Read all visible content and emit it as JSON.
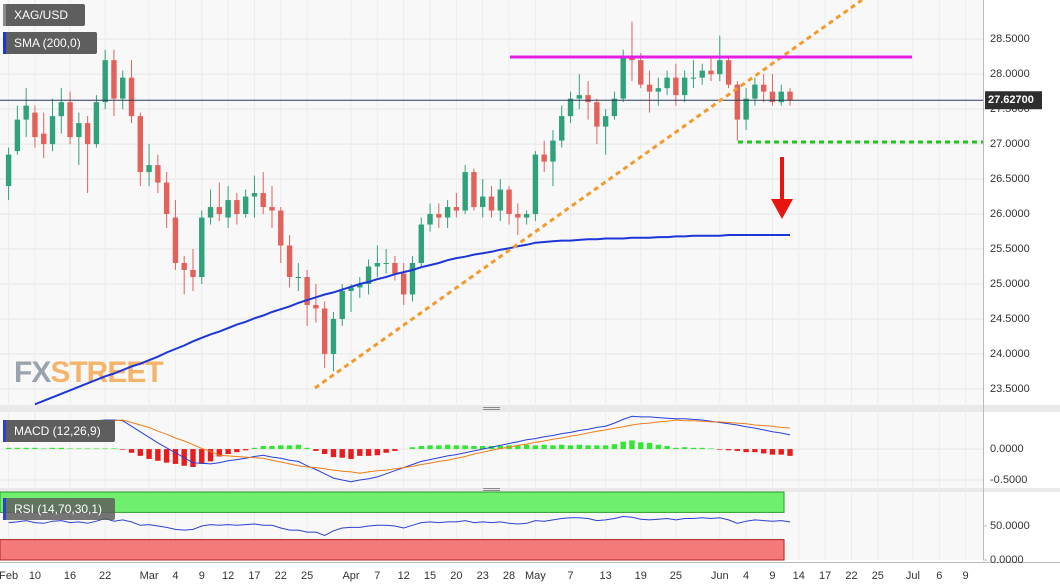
{
  "watermark": [
    "FX",
    "STREET"
  ],
  "chart_data": [
    {
      "type": "candlestick",
      "title": "XAG/USD",
      "grid": true,
      "up_color": "#2fa27a",
      "down_color": "#e2625b",
      "categories": [
        "Feb",
        null,
        null,
        "10",
        null,
        null,
        null,
        "16",
        null,
        null,
        null,
        "22",
        null,
        null,
        null,
        null,
        "Mar",
        null,
        null,
        "4",
        null,
        null,
        "9",
        null,
        null,
        "12",
        null,
        null,
        "17",
        null,
        null,
        "22",
        null,
        null,
        "25",
        null,
        null,
        null,
        null,
        "Apr",
        null,
        null,
        "7",
        null,
        null,
        "12",
        null,
        null,
        "15",
        null,
        null,
        "20",
        null,
        null,
        "23",
        null,
        null,
        "28",
        null,
        null,
        "May",
        null,
        null,
        null,
        "7",
        null,
        null,
        null,
        "13",
        null,
        null,
        null,
        "19",
        null,
        null,
        null,
        "25",
        null,
        null,
        null,
        null,
        "Jun",
        null,
        null,
        "4",
        null,
        null,
        "9",
        null,
        null,
        "14",
        null,
        null,
        "17",
        null,
        null,
        "22",
        null,
        null,
        "25",
        null,
        null,
        null,
        "Jul",
        null,
        null,
        "6",
        null,
        null,
        "9",
        null
      ],
      "open": [
        26.4,
        26.9,
        27.35,
        27.45,
        27.15,
        27.0,
        27.4,
        27.6,
        27.1,
        27.3,
        27.0,
        27.6,
        28.2,
        27.65,
        27.95,
        27.4,
        26.6,
        26.7,
        26.45,
        25.95,
        25.3,
        25.2,
        25.1,
        25.95,
        26.1,
        25.95,
        26.2,
        26.0,
        26.25,
        26.3,
        26.1,
        26.05,
        25.55,
        25.1,
        25.1,
        24.7,
        24.65,
        24.0,
        24.5,
        24.9,
        24.95,
        25.0,
        25.25,
        25.3,
        25.3,
        25.15,
        24.85,
        25.3,
        25.85,
        26.0,
        25.95,
        26.1,
        26.05,
        26.6,
        26.1,
        26.25,
        26.05,
        26.35,
        26.0,
        25.95,
        26.0,
        26.85,
        26.75,
        27.05,
        27.4,
        27.65,
        27.7,
        27.6,
        27.25,
        27.4,
        27.65,
        28.25,
        28.2,
        27.85,
        27.75,
        27.8,
        27.95,
        27.7,
        27.95,
        27.95,
        28.05,
        28.0,
        28.2,
        27.85,
        27.35,
        27.65,
        27.85,
        27.75,
        27.6,
        27.75,
        null,
        null,
        null,
        null,
        null,
        null,
        null,
        null,
        null,
        null,
        null,
        null,
        null,
        null,
        null,
        null,
        null,
        null,
        null,
        null,
        null
      ],
      "high": [
        26.95,
        27.55,
        27.8,
        27.55,
        27.45,
        27.65,
        27.8,
        27.75,
        27.45,
        27.4,
        27.7,
        28.35,
        28.35,
        28.05,
        28.2,
        27.45,
        27.0,
        26.85,
        26.6,
        26.2,
        25.4,
        25.5,
        26.05,
        26.35,
        26.45,
        26.4,
        26.3,
        26.35,
        26.55,
        26.6,
        26.4,
        26.1,
        25.7,
        25.3,
        25.2,
        25.0,
        24.75,
        24.6,
        25.0,
        25.0,
        25.1,
        25.35,
        25.55,
        25.5,
        25.4,
        25.3,
        25.4,
        25.95,
        26.15,
        26.15,
        26.2,
        26.3,
        26.7,
        26.65,
        26.5,
        26.4,
        26.5,
        26.4,
        26.15,
        26.05,
        26.9,
        27.05,
        27.2,
        27.55,
        27.75,
        28.0,
        27.9,
        27.65,
        27.5,
        27.75,
        28.35,
        28.75,
        28.3,
        28.05,
        27.95,
        28.05,
        28.15,
        28.05,
        28.2,
        28.15,
        28.25,
        28.55,
        28.25,
        27.9,
        27.8,
        27.95,
        28.0,
        28.0,
        27.85,
        27.8,
        null,
        null,
        null,
        null,
        null,
        null,
        null,
        null,
        null,
        null,
        null,
        null,
        null,
        null,
        null,
        null,
        null,
        null,
        null,
        null,
        null
      ],
      "low": [
        26.2,
        26.85,
        27.1,
        26.95,
        26.8,
        26.9,
        27.15,
        27.0,
        26.7,
        26.3,
        26.95,
        27.5,
        27.4,
        27.5,
        27.3,
        26.4,
        26.4,
        26.3,
        25.8,
        25.2,
        24.85,
        24.9,
        25.0,
        25.85,
        25.9,
        25.8,
        25.85,
        25.95,
        25.95,
        26.0,
        25.8,
        25.3,
        24.95,
        24.9,
        24.4,
        24.45,
        23.8,
        23.75,
        24.4,
        24.6,
        24.8,
        24.85,
        25.1,
        25.15,
        25.05,
        24.7,
        24.75,
        25.25,
        25.75,
        25.8,
        25.8,
        25.95,
        26.0,
        26.05,
        25.95,
        25.95,
        25.9,
        25.85,
        25.7,
        25.85,
        25.9,
        26.6,
        26.4,
        26.95,
        27.3,
        27.5,
        27.35,
        27.0,
        26.85,
        27.35,
        27.6,
        27.9,
        27.8,
        27.45,
        27.55,
        27.7,
        27.55,
        27.6,
        27.8,
        27.85,
        27.9,
        27.9,
        27.8,
        27.05,
        27.2,
        27.55,
        27.6,
        27.55,
        27.55,
        27.55,
        null,
        null,
        null,
        null,
        null,
        null,
        null,
        null,
        null,
        null,
        null,
        null,
        null,
        null,
        null,
        null,
        null,
        null,
        null,
        null,
        null
      ],
      "close": [
        26.85,
        27.35,
        27.55,
        27.1,
        27.0,
        27.4,
        27.6,
        27.1,
        27.3,
        27.0,
        27.6,
        28.2,
        27.65,
        27.95,
        27.4,
        26.6,
        26.7,
        26.45,
        26.0,
        25.3,
        25.2,
        25.1,
        25.95,
        26.1,
        26.0,
        26.2,
        26.0,
        26.25,
        26.3,
        26.1,
        26.05,
        25.55,
        25.1,
        25.1,
        24.7,
        24.65,
        24.0,
        24.5,
        24.9,
        24.95,
        25.0,
        25.25,
        25.3,
        25.3,
        25.15,
        24.85,
        25.3,
        25.85,
        26.0,
        25.95,
        26.1,
        26.05,
        26.6,
        26.1,
        26.25,
        26.05,
        26.35,
        26.0,
        25.95,
        26.0,
        26.85,
        26.75,
        27.05,
        27.4,
        27.65,
        27.7,
        27.6,
        27.25,
        27.4,
        27.65,
        28.25,
        28.2,
        27.85,
        27.75,
        27.8,
        27.95,
        27.7,
        27.95,
        27.95,
        28.05,
        28.0,
        28.2,
        27.85,
        27.35,
        27.65,
        27.85,
        27.75,
        27.6,
        27.75,
        27.63,
        null,
        null,
        null,
        null,
        null,
        null,
        null,
        null,
        null,
        null,
        null,
        null,
        null,
        null,
        null,
        null,
        null,
        null,
        null,
        null,
        null
      ],
      "series": [
        {
          "name": "SMA (200,0)",
          "color": "#1c36d8",
          "values": [
            null,
            null,
            null,
            23.28,
            23.33,
            23.38,
            23.43,
            23.48,
            23.53,
            23.58,
            23.63,
            23.68,
            23.72,
            23.77,
            23.82,
            23.86,
            23.91,
            23.96,
            24.02,
            24.07,
            24.12,
            24.18,
            24.23,
            24.28,
            24.32,
            24.37,
            24.42,
            24.46,
            24.51,
            24.55,
            24.6,
            24.64,
            24.68,
            24.73,
            24.77,
            24.81,
            24.85,
            24.88,
            24.92,
            24.96,
            25.0,
            25.03,
            25.07,
            25.1,
            25.14,
            25.17,
            25.2,
            25.24,
            25.27,
            25.3,
            25.34,
            25.37,
            25.39,
            25.42,
            25.44,
            25.46,
            25.49,
            25.51,
            25.54,
            25.56,
            25.59,
            25.6,
            25.61,
            25.62,
            25.62,
            25.63,
            25.64,
            25.64,
            25.65,
            25.65,
            25.65,
            25.66,
            25.66,
            25.66,
            25.67,
            25.67,
            25.68,
            25.68,
            25.69,
            25.69,
            25.69,
            25.69,
            25.7,
            25.7,
            25.7,
            25.7,
            25.7,
            25.7,
            25.7,
            25.7,
            null,
            null,
            null,
            null,
            null,
            null,
            null,
            null,
            null,
            null,
            null,
            null,
            null,
            null,
            null,
            null,
            null,
            null,
            null,
            null,
            null
          ]
        }
      ],
      "price_tag": {
        "value": 27.627,
        "label": "27.62700"
      },
      "ylim": [
        23.27,
        29.06
      ],
      "yticks": [
        {
          "value": 23.5,
          "label": "23.5000"
        },
        {
          "value": 24,
          "label": "24.0000"
        },
        {
          "value": 24.5,
          "label": "24.5000"
        },
        {
          "value": 25,
          "label": "25.0000"
        },
        {
          "value": 25.5,
          "label": "25.5000"
        },
        {
          "value": 26,
          "label": "26.0000"
        },
        {
          "value": 26.5,
          "label": "26.5000"
        },
        {
          "value": 27,
          "label": "27.0000"
        },
        {
          "value": 27.5,
          "label": "27.5000"
        },
        {
          "value": 28,
          "label": "28.0000"
        },
        {
          "value": 28.5,
          "label": "28.5000"
        }
      ]
    },
    {
      "type": "macd",
      "title": "MACD (12,26,9)",
      "grid": true,
      "series": [
        {
          "color": "#2a3fd8",
          "values": [
            0.4,
            0.41,
            0.41,
            0.42,
            0.42,
            0.43,
            0.44,
            0.44,
            0.45,
            0.45,
            0.46,
            0.47,
            0.47,
            0.46,
            0.37,
            0.28,
            0.19,
            0.1,
            0.02,
            -0.06,
            -0.14,
            -0.22,
            -0.23,
            -0.24,
            -0.22,
            -0.19,
            -0.17,
            -0.15,
            -0.12,
            -0.1,
            -0.13,
            -0.15,
            -0.18,
            -0.2,
            -0.27,
            -0.33,
            -0.4,
            -0.47,
            -0.5,
            -0.53,
            -0.5,
            -0.48,
            -0.45,
            -0.4,
            -0.35,
            -0.3,
            -0.25,
            -0.2,
            -0.17,
            -0.14,
            -0.11,
            -0.09,
            -0.06,
            -0.03,
            0,
            0.03,
            0.06,
            0.09,
            0.12,
            0.15,
            0.17,
            0.2,
            0.22,
            0.25,
            0.27,
            0.3,
            0.32,
            0.35,
            0.37,
            0.42,
            0.48,
            0.53,
            0.52,
            0.52,
            0.51,
            0.5,
            0.49,
            0.49,
            0.48,
            0.47,
            0.45,
            0.43,
            0.41,
            0.39,
            0.36,
            0.34,
            0.31,
            0.28,
            0.26,
            0.23,
            null,
            null,
            null,
            null,
            null,
            null,
            null,
            null,
            null,
            null,
            null,
            null,
            null,
            null,
            null,
            null,
            null,
            null,
            null,
            null,
            null
          ]
        },
        {
          "color": "#f07d1a",
          "values": [
            0.38,
            0.39,
            0.39,
            0.4,
            0.41,
            0.41,
            0.42,
            0.43,
            0.44,
            0.44,
            0.45,
            0.46,
            0.46,
            0.47,
            0.43,
            0.39,
            0.35,
            0.29,
            0.24,
            0.18,
            0.13,
            0.07,
            0.01,
            -0.04,
            -0.1,
            -0.11,
            -0.12,
            -0.13,
            -0.14,
            -0.15,
            -0.18,
            -0.21,
            -0.24,
            -0.27,
            -0.29,
            -0.3,
            -0.32,
            -0.34,
            -0.36,
            -0.37,
            -0.39,
            -0.37,
            -0.35,
            -0.34,
            -0.32,
            -0.3,
            -0.28,
            -0.25,
            -0.23,
            -0.2,
            -0.18,
            -0.15,
            -0.12,
            -0.08,
            -0.05,
            -0.02,
            0.01,
            0.03,
            0.06,
            0.08,
            0.11,
            0.13,
            0.16,
            0.18,
            0.21,
            0.23,
            0.26,
            0.29,
            0.31,
            0.34,
            0.36,
            0.39,
            0.41,
            0.42,
            0.44,
            0.45,
            0.47,
            0.46,
            0.46,
            0.45,
            0.44,
            0.44,
            0.43,
            0.42,
            0.41,
            0.39,
            0.38,
            0.37,
            0.35,
            0.34,
            null,
            null,
            null,
            null,
            null,
            null,
            null,
            null,
            null,
            null,
            null,
            null,
            null,
            null,
            null,
            null,
            null,
            null,
            null,
            null,
            null
          ]
        }
      ],
      "histogram": {
        "up_color": "#33e633",
        "down_color": "#e81c1c",
        "values": [
          0.02,
          0.02,
          0.02,
          0.02,
          0.01,
          0.02,
          0.02,
          0.01,
          0.01,
          0.01,
          0.01,
          0.01,
          0.01,
          -0.01,
          -0.06,
          -0.11,
          -0.16,
          -0.19,
          -0.22,
          -0.24,
          -0.27,
          -0.29,
          -0.24,
          -0.2,
          -0.12,
          -0.08,
          -0.05,
          -0.02,
          0.02,
          0.05,
          0.05,
          0.06,
          0.06,
          0.07,
          0.02,
          -0.03,
          -0.08,
          -0.13,
          -0.14,
          -0.16,
          -0.11,
          -0.11,
          -0.1,
          -0.06,
          -0.03,
          0,
          0.03,
          0.05,
          0.06,
          0.06,
          0.07,
          0.06,
          0.06,
          0.05,
          0.05,
          0.05,
          0.05,
          0.06,
          0.06,
          0.07,
          0.06,
          0.07,
          0.06,
          0.07,
          0.06,
          0.07,
          0.06,
          0.06,
          0.06,
          0.08,
          0.12,
          0.14,
          0.11,
          0.1,
          0.07,
          0.05,
          0.02,
          0.03,
          0.02,
          0.02,
          0.01,
          -0.01,
          -0.02,
          -0.03,
          -0.05,
          -0.05,
          -0.07,
          -0.09,
          -0.09,
          -0.11,
          null,
          null,
          null,
          null,
          null,
          null,
          null,
          null,
          null,
          null,
          null,
          null,
          null,
          null,
          null,
          null,
          null,
          null,
          null,
          null,
          null
        ]
      },
      "ylim": [
        -0.63,
        0.6
      ],
      "yticks": [
        {
          "value": -0.5,
          "label": "-0.5000"
        },
        {
          "value": 0,
          "label": "0.0000"
        }
      ]
    },
    {
      "type": "rsi",
      "title": "RSI (14,70,30,1)",
      "color": "#2f3fd0",
      "overbought": 70,
      "oversold": 30,
      "overbought_color": "#6ef06e",
      "oversold_color": "#f47a7a",
      "values": [
        55,
        56,
        58,
        55,
        54,
        57,
        58,
        55,
        56,
        54,
        57,
        61,
        57,
        59,
        56,
        51,
        52,
        50,
        48,
        45,
        44,
        45,
        50,
        52,
        51,
        52,
        51,
        52,
        53,
        51,
        51,
        47,
        44,
        44,
        41,
        41,
        36,
        43,
        47,
        48,
        48,
        50,
        51,
        51,
        50,
        47,
        51,
        55,
        56,
        55,
        56,
        56,
        58,
        55,
        56,
        55,
        56,
        54,
        53,
        54,
        58,
        57,
        59,
        61,
        62,
        62,
        61,
        58,
        59,
        61,
        64,
        63,
        60,
        59,
        60,
        61,
        59,
        61,
        61,
        62,
        61,
        62,
        59,
        54,
        57,
        59,
        58,
        57,
        58,
        56,
        null,
        null,
        null,
        null,
        null,
        null,
        null,
        null,
        null,
        null,
        null,
        null,
        null,
        null,
        null,
        null,
        null,
        null,
        null,
        null,
        null
      ],
      "ylim": [
        0,
        100
      ],
      "yticks": [
        {
          "value": 0,
          "label": "0.0000"
        },
        {
          "value": 50,
          "label": "50.0000"
        }
      ]
    }
  ]
}
